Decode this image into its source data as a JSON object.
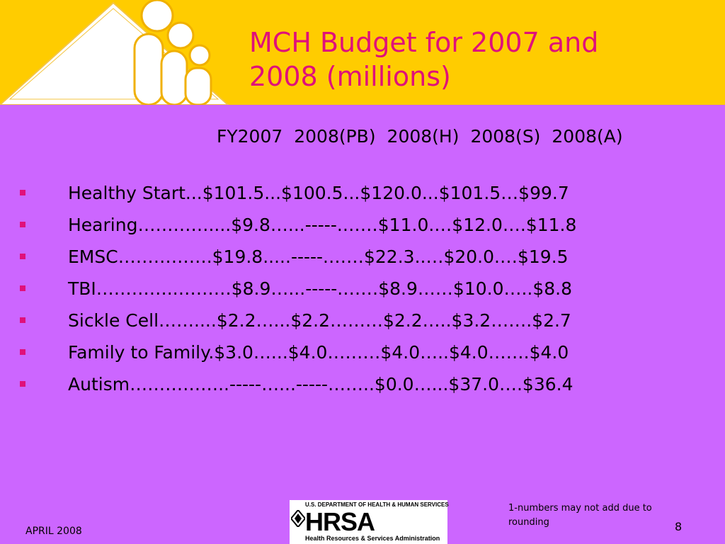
{
  "title": "MCH Budget for 2007 and 2008 (millions)",
  "colors": {
    "background": "#cc66ff",
    "header": "#ffcc00",
    "title": "#e0107a",
    "bullet": "#e0107a"
  },
  "column_headers": [
    "FY2007",
    "2008(PB)",
    "2008(H)",
    "2008(S)",
    "2008(A)"
  ],
  "rows": [
    {
      "text": "Healthy Start...$101.5...$100.5...$120.0...$101.5…$99.7"
    },
    {
      "text": "Hearing…………....$9.8…...-----.……$11.0.…$12.0….$11.8"
    },
    {
      "text": "EMSC…………….$19.8.....-----.……$22.3..…$20.0.…$19.5"
    },
    {
      "text": "TBI…………..………$8.9…...-----.……$8.9……$10.0…..$8.8"
    },
    {
      "text": "Sickle Cell……....$2.2…...$2.2………$2.2…..$3.2…….$2.7"
    },
    {
      "text": "Family to Family.$3.0…...$4.0………$4.0…..$4.0…….$4.0"
    },
    {
      "text": "Autism……………..-----…...-----……..$0.0…...$37.0….$36.4"
    }
  ],
  "logo": {
    "top_text": "U.S. DEPARTMENT OF HEALTH & HUMAN SERVICES",
    "main_text": "HRSA",
    "sub_text": "Health Resources & Services Administration"
  },
  "footnote": "1-numbers may not add due to rounding",
  "date": "APRIL 2008",
  "page_number": "8"
}
